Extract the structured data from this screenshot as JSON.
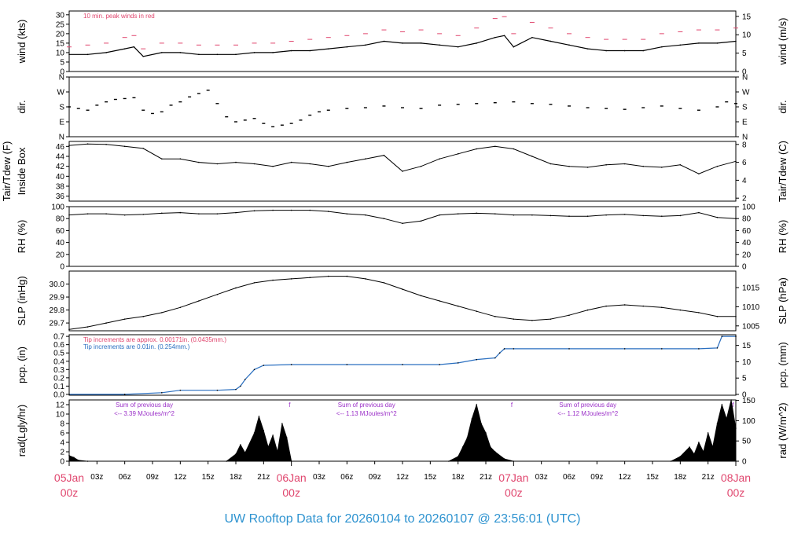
{
  "title": "UW Rooftop Data for 20260104  to  20260107 @ 23:56:01  (UTC)",
  "colors": {
    "peak": "#e0466e",
    "title": "#2e93d0",
    "pcp": "#2a6fc0",
    "rad_note": "#9b30c8",
    "day_label": "#e0466e"
  },
  "x_axis": {
    "hour_labels": [
      "03z",
      "06z",
      "09z",
      "12z",
      "15z",
      "18z",
      "21z",
      "03z",
      "06z",
      "09z",
      "12z",
      "15z",
      "18z",
      "21z",
      "03z",
      "06z",
      "09z",
      "12z",
      "15z",
      "18z",
      "21z"
    ],
    "hour_positions_h": [
      3,
      6,
      9,
      12,
      15,
      18,
      21,
      27,
      30,
      33,
      36,
      39,
      42,
      45,
      51,
      54,
      57,
      60,
      63,
      66,
      69
    ],
    "day_labels": [
      {
        "line1": "05Jan",
        "line2": "00z",
        "h": 0
      },
      {
        "line1": "06Jan",
        "line2": "00z",
        "h": 24
      },
      {
        "line1": "07Jan",
        "line2": "00z",
        "h": 48
      },
      {
        "line1": "08Jan",
        "line2": "00z",
        "h": 72
      }
    ],
    "range_h": [
      0,
      72
    ]
  },
  "panels": {
    "wind": {
      "ylabel_left": "wind (kts)",
      "ylabel_right": "wind (m/s)",
      "left_ticks": [
        "0",
        "5",
        "10",
        "15",
        "20",
        "25",
        "30"
      ],
      "left_vals": [
        0,
        5,
        10,
        15,
        20,
        25,
        30
      ],
      "right_ticks": [
        "0",
        "5",
        "10",
        "15"
      ],
      "right_vals": [
        0,
        5,
        10,
        15
      ],
      "ylim": [
        0,
        32
      ],
      "right_factor": 0.5144,
      "note": "10 min. peak winds in red"
    },
    "dir": {
      "ylabel_left": "dir.",
      "ylabel_right": "dir.",
      "ticks": [
        "N",
        "E",
        "S",
        "W",
        "N"
      ],
      "vals": [
        0,
        90,
        180,
        270,
        360
      ],
      "ylim": [
        0,
        360
      ]
    },
    "temp": {
      "ylabel_left_1": "Tair/Tdew (F)",
      "ylabel_left_2": "Inside Box",
      "ylabel_right": "Tair/Tdew (C)",
      "left_ticks": [
        "36",
        "38",
        "40",
        "42",
        "44",
        "46"
      ],
      "left_vals": [
        36,
        38,
        40,
        42,
        44,
        46
      ],
      "right_ticks": [
        "2",
        "4",
        "6",
        "8"
      ],
      "right_vals": [
        2,
        4,
        6,
        8
      ],
      "ylim": [
        35,
        47
      ]
    },
    "rh": {
      "ylabel_left": "RH (%)",
      "ylabel_right": "RH (%)",
      "ticks": [
        "0",
        "20",
        "40",
        "60",
        "80",
        "100"
      ],
      "vals": [
        0,
        20,
        40,
        60,
        80,
        100
      ],
      "ylim": [
        0,
        100
      ]
    },
    "slp": {
      "ylabel_left": "SLP (inHg)",
      "ylabel_right": "SLP (hPa)",
      "left_ticks": [
        "29.7",
        "29.8",
        "29.9",
        "30.0"
      ],
      "left_vals": [
        29.7,
        29.8,
        29.9,
        30.0
      ],
      "right_ticks": [
        "1005",
        "1010",
        "1015"
      ],
      "right_vals": [
        1005,
        1010,
        1015
      ],
      "ylim": [
        29.64,
        30.1
      ]
    },
    "pcp": {
      "ylabel_left": "pcp. (in)",
      "ylabel_right": "pcp. (mm)",
      "left_ticks": [
        "0.0",
        "0.1",
        "0.2",
        "0.3",
        "0.4",
        "0.5",
        "0.6",
        "0.7"
      ],
      "left_vals": [
        0,
        0.1,
        0.2,
        0.3,
        0.4,
        0.5,
        0.6,
        0.7
      ],
      "right_ticks": [
        "0",
        "5",
        "10",
        "15"
      ],
      "right_vals": [
        0,
        5,
        10,
        15
      ],
      "ylim": [
        -0.01,
        0.72
      ],
      "note1": "Tip increments are approx. 0.00171in. (0.0435mm.)",
      "note2": "Tip increments are 0.01in. (0.254mm.)"
    },
    "rad": {
      "ylabel_left": "rad(Lgly/hr)",
      "ylabel_right": "rad (W/m^2)",
      "left_ticks": [
        "0",
        "2",
        "4",
        "6",
        "8",
        "10",
        "12"
      ],
      "left_vals": [
        0,
        2,
        4,
        6,
        8,
        10,
        12
      ],
      "right_ticks": [
        "0",
        "50",
        "100",
        "150"
      ],
      "right_vals": [
        0,
        50,
        100,
        150
      ],
      "ylim": [
        0,
        13
      ],
      "sums": [
        {
          "line1": "Sum of previous day",
          "line2": "<-- 3.39 MJoules/m^2",
          "h": 3.7
        },
        {
          "line1": "Sum of previous day",
          "line2": "<-- 1.13 MJoules/m^2",
          "h": 27.7
        },
        {
          "line1": "Sum of previous day",
          "line2": "<-- 1.12 MJoules/m^2",
          "h": 51.6
        }
      ],
      "marks": [
        {
          "label": "f",
          "h": 23.8
        },
        {
          "label": "f",
          "h": 47.8
        },
        {
          "label": "f",
          "h": 71.7
        }
      ]
    }
  },
  "chart_data": [
    {
      "type": "line",
      "name_key": "wind",
      "series": [
        {
          "name": "wind",
          "x": [
            0,
            2,
            4,
            6,
            7,
            8,
            10,
            12,
            14,
            16,
            18,
            20,
            22,
            24,
            26,
            28,
            30,
            32,
            34,
            36,
            38,
            40,
            42,
            44,
            46,
            47,
            48,
            50,
            52,
            54,
            56,
            58,
            60,
            62,
            64,
            66,
            68,
            70,
            72
          ],
          "y": [
            9,
            9,
            10,
            12,
            13,
            8,
            10,
            10,
            9,
            9,
            9,
            10,
            10,
            11,
            11,
            12,
            13,
            14,
            16,
            15,
            15,
            14,
            13,
            15,
            18,
            19,
            13,
            18,
            16,
            14,
            12,
            11,
            11,
            11,
            13,
            14,
            15,
            15,
            16
          ]
        },
        {
          "name": "10 min. peak winds",
          "x": [
            0,
            2,
            4,
            6,
            7,
            8,
            10,
            12,
            14,
            16,
            18,
            20,
            22,
            24,
            26,
            28,
            30,
            32,
            34,
            36,
            38,
            40,
            42,
            44,
            46,
            47,
            48,
            50,
            52,
            54,
            56,
            58,
            60,
            62,
            64,
            66,
            68,
            70,
            72
          ],
          "y": [
            13,
            14,
            15,
            18,
            19,
            12,
            15,
            15,
            14,
            14,
            14,
            15,
            15,
            16,
            17,
            18,
            19,
            20,
            22,
            21,
            22,
            20,
            19,
            23,
            28,
            29,
            20,
            26,
            23,
            20,
            18,
            17,
            17,
            17,
            20,
            21,
            22,
            22,
            23
          ]
        }
      ]
    },
    {
      "type": "scatter",
      "name_key": "dir",
      "series": [
        {
          "name": "dir",
          "x": [
            0,
            1,
            2,
            3,
            4,
            5,
            6,
            7,
            8,
            9,
            10,
            11,
            12,
            13,
            14,
            15,
            16,
            17,
            18,
            19,
            20,
            21,
            22,
            23,
            24,
            25,
            26,
            27,
            28,
            30,
            32,
            34,
            36,
            38,
            40,
            42,
            44,
            46,
            48,
            50,
            52,
            54,
            56,
            58,
            60,
            62,
            64,
            66,
            68,
            70,
            71,
            72
          ],
          "y": [
            180,
            170,
            160,
            190,
            210,
            225,
            230,
            235,
            160,
            140,
            150,
            190,
            210,
            240,
            260,
            280,
            200,
            120,
            90,
            100,
            110,
            80,
            60,
            70,
            80,
            100,
            130,
            150,
            160,
            170,
            175,
            185,
            175,
            170,
            190,
            195,
            200,
            205,
            210,
            200,
            195,
            185,
            175,
            170,
            165,
            175,
            185,
            170,
            160,
            180,
            210,
            200
          ]
        }
      ]
    },
    {
      "type": "line",
      "name_key": "temp",
      "series": [
        {
          "name": "Tair",
          "x": [
            0,
            2,
            4,
            6,
            8,
            10,
            12,
            14,
            16,
            18,
            20,
            22,
            24,
            26,
            28,
            30,
            32,
            34,
            36,
            38,
            40,
            42,
            44,
            46,
            48,
            50,
            52,
            54,
            56,
            58,
            60,
            62,
            64,
            66,
            68,
            70,
            72
          ],
          "y": [
            46.2,
            46.5,
            46.4,
            46.0,
            45.6,
            43.5,
            43.5,
            42.8,
            42.5,
            42.8,
            42.5,
            42.0,
            42.8,
            42.5,
            42.0,
            42.8,
            43.5,
            44.2,
            41.0,
            42.0,
            43.5,
            44.5,
            45.5,
            46.0,
            45.5,
            44.0,
            42.5,
            42.0,
            41.8,
            42.3,
            42.5,
            42.0,
            41.8,
            42.3,
            40.5,
            42.0,
            43.0
          ]
        }
      ]
    },
    {
      "type": "line",
      "name_key": "rh",
      "series": [
        {
          "name": "RH",
          "x": [
            0,
            2,
            4,
            6,
            8,
            10,
            12,
            14,
            16,
            18,
            20,
            22,
            24,
            26,
            28,
            30,
            32,
            34,
            36,
            38,
            40,
            42,
            44,
            46,
            48,
            50,
            52,
            54,
            56,
            58,
            60,
            62,
            64,
            66,
            68,
            70,
            72
          ],
          "y": [
            86,
            88,
            88,
            86,
            87,
            89,
            90,
            88,
            88,
            90,
            93,
            94,
            94,
            94,
            92,
            88,
            86,
            80,
            72,
            76,
            86,
            88,
            89,
            88,
            86,
            86,
            85,
            84,
            84,
            86,
            87,
            85,
            84,
            85,
            90,
            82,
            80
          ]
        }
      ]
    },
    {
      "type": "line",
      "name_key": "slp",
      "series": [
        {
          "name": "SLP",
          "x": [
            0,
            2,
            4,
            6,
            8,
            10,
            12,
            14,
            16,
            18,
            20,
            22,
            24,
            26,
            28,
            30,
            32,
            34,
            36,
            38,
            40,
            42,
            44,
            46,
            48,
            50,
            52,
            54,
            56,
            58,
            60,
            62,
            64,
            66,
            68,
            70,
            72
          ],
          "y": [
            29.65,
            29.67,
            29.7,
            29.73,
            29.75,
            29.78,
            29.82,
            29.87,
            29.92,
            29.97,
            30.01,
            30.03,
            30.04,
            30.05,
            30.06,
            30.06,
            30.04,
            30.01,
            29.96,
            29.91,
            29.87,
            29.83,
            29.79,
            29.75,
            29.73,
            29.72,
            29.73,
            29.76,
            29.8,
            29.83,
            29.84,
            29.83,
            29.82,
            29.8,
            29.78,
            29.75,
            29.75
          ]
        }
      ]
    },
    {
      "type": "line",
      "name_key": "pcp",
      "series": [
        {
          "name": "pcp",
          "x": [
            0,
            6,
            10,
            12,
            16,
            18,
            18.5,
            19,
            20,
            21,
            24,
            30,
            36,
            40,
            42,
            44,
            46,
            46.5,
            47,
            48,
            54,
            60,
            64,
            68,
            70,
            70.5,
            72
          ],
          "y": [
            0,
            0,
            0.02,
            0.05,
            0.05,
            0.06,
            0.1,
            0.18,
            0.3,
            0.35,
            0.36,
            0.36,
            0.36,
            0.36,
            0.38,
            0.42,
            0.44,
            0.5,
            0.55,
            0.55,
            0.55,
            0.55,
            0.55,
            0.55,
            0.56,
            0.7,
            0.7
          ]
        }
      ]
    },
    {
      "type": "area",
      "name_key": "rad",
      "series": [
        {
          "name": "rad",
          "x": [
            0,
            0.5,
            1,
            2,
            17,
            18,
            18.5,
            19,
            20,
            20.5,
            21,
            21.5,
            22,
            22.5,
            23,
            23.5,
            24,
            41,
            42,
            42.5,
            43,
            43.5,
            44,
            44.5,
            45,
            45.5,
            46,
            47,
            48,
            65,
            66,
            67,
            67.5,
            68,
            68.5,
            69,
            69.5,
            70,
            70.5,
            71,
            71.5,
            72
          ],
          "y": [
            1.2,
            0.8,
            0.2,
            0,
            0,
            1.5,
            3.5,
            1.8,
            6,
            9.5,
            6.5,
            3,
            5.5,
            2,
            8,
            5,
            0,
            0,
            1,
            3,
            5,
            9,
            12,
            8,
            6,
            3,
            2,
            0.5,
            0,
            0,
            1,
            3,
            1.5,
            4,
            2,
            6,
            3,
            8,
            12,
            9,
            13,
            7
          ]
        }
      ]
    }
  ]
}
